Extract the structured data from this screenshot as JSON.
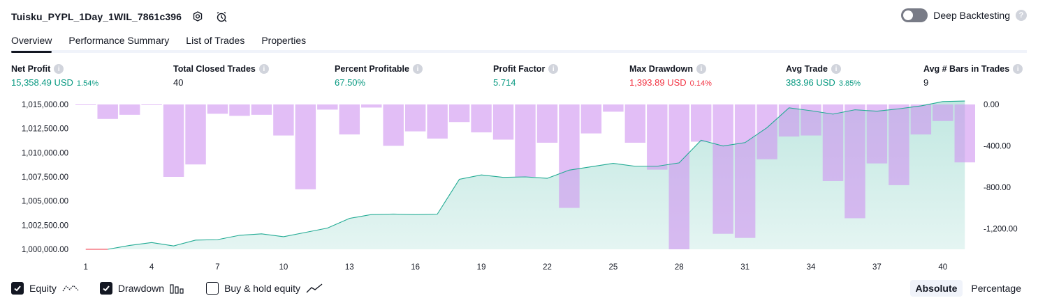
{
  "header": {
    "title": "Tuisku_PYPL_1Day_1WIL_7861c396",
    "settings_icon": "gear-icon",
    "alert_icon": "alarm-clock-icon"
  },
  "deep_backtesting": {
    "label": "Deep Backtesting",
    "enabled": false,
    "help": "?"
  },
  "tabs": [
    {
      "label": "Overview",
      "active": true
    },
    {
      "label": "Performance Summary",
      "active": false
    },
    {
      "label": "List of Trades",
      "active": false
    },
    {
      "label": "Properties",
      "active": false
    }
  ],
  "metrics": {
    "net_profit": {
      "label": "Net Profit",
      "value": "15,358.49 USD",
      "sub": "1.54%"
    },
    "total_closed_trades": {
      "label": "Total Closed Trades",
      "value": "40"
    },
    "percent_profitable": {
      "label": "Percent Profitable",
      "value": "67.50%"
    },
    "profit_factor": {
      "label": "Profit Factor",
      "value": "5.714"
    },
    "max_drawdown": {
      "label": "Max Drawdown",
      "value": "1,393.89 USD",
      "sub": "0.14%"
    },
    "avg_trade": {
      "label": "Avg Trade",
      "value": "383.96 USD",
      "sub": "3.85%"
    },
    "avg_bars": {
      "label": "Avg # Bars in Trades",
      "value": "9"
    }
  },
  "chart_data": {
    "type": "area",
    "x": [
      1,
      2,
      3,
      4,
      5,
      6,
      7,
      8,
      9,
      10,
      11,
      12,
      13,
      14,
      15,
      16,
      17,
      18,
      19,
      20,
      21,
      22,
      23,
      24,
      25,
      26,
      27,
      28,
      29,
      30,
      31,
      32,
      33,
      34,
      35,
      36,
      37,
      38,
      39,
      40,
      41
    ],
    "x_ticks": [
      1,
      4,
      7,
      10,
      13,
      16,
      19,
      22,
      25,
      28,
      31,
      34,
      37,
      40
    ],
    "series": [
      {
        "name": "Equity",
        "axis": "left",
        "values": [
          1000000,
          1000000,
          1000400,
          1000700,
          1000350,
          1000950,
          1001000,
          1001450,
          1001600,
          1001300,
          1001750,
          1002200,
          1003200,
          1003600,
          1003650,
          1003600,
          1003650,
          1007250,
          1007700,
          1007450,
          1007500,
          1007350,
          1008200,
          1008550,
          1008900,
          1008600,
          1008600,
          1008950,
          1011300,
          1010700,
          1011050,
          1012600,
          1014650,
          1014350,
          1014000,
          1014450,
          1014300,
          1014550,
          1014850,
          1015300,
          1015358
        ]
      },
      {
        "name": "Drawdown",
        "axis": "right",
        "values": [
          0,
          -140,
          -100,
          0,
          -700,
          -580,
          -90,
          -110,
          -100,
          -300,
          -820,
          -50,
          -290,
          -30,
          -400,
          -260,
          -330,
          -170,
          -270,
          -340,
          -700,
          -370,
          -1000,
          -280,
          -70,
          -370,
          -630,
          -1400,
          -360,
          -1250,
          -1290,
          -530,
          -310,
          -300,
          -740,
          -1100,
          -570,
          -780,
          -290,
          -160,
          -560
        ]
      }
    ],
    "y_left": {
      "ticks": [
        "1,000,000.00",
        "1,002,500.00",
        "1,005,000.00",
        "1,007,500.00",
        "1,010,000.00",
        "1,012,500.00",
        "1,015,000.00"
      ],
      "min": 1000000,
      "max": 1015000
    },
    "y_right": {
      "ticks": [
        "0.00",
        "-400.00",
        "-800.00",
        "-1,200.00"
      ],
      "min": -1400,
      "max": 0
    },
    "colors": {
      "equity_line": "#22ab94",
      "equity_fill": "#22ab94",
      "drawdown": "#ce93f0",
      "start_line": "#f23645"
    },
    "grid": false
  },
  "footer": {
    "equity": {
      "label": "Equity",
      "checked": true
    },
    "drawdown": {
      "label": "Drawdown",
      "checked": true
    },
    "buy_hold": {
      "label": "Buy & hold equity",
      "checked": false
    },
    "modes": [
      {
        "label": "Absolute",
        "active": true
      },
      {
        "label": "Percentage",
        "active": false
      }
    ]
  }
}
